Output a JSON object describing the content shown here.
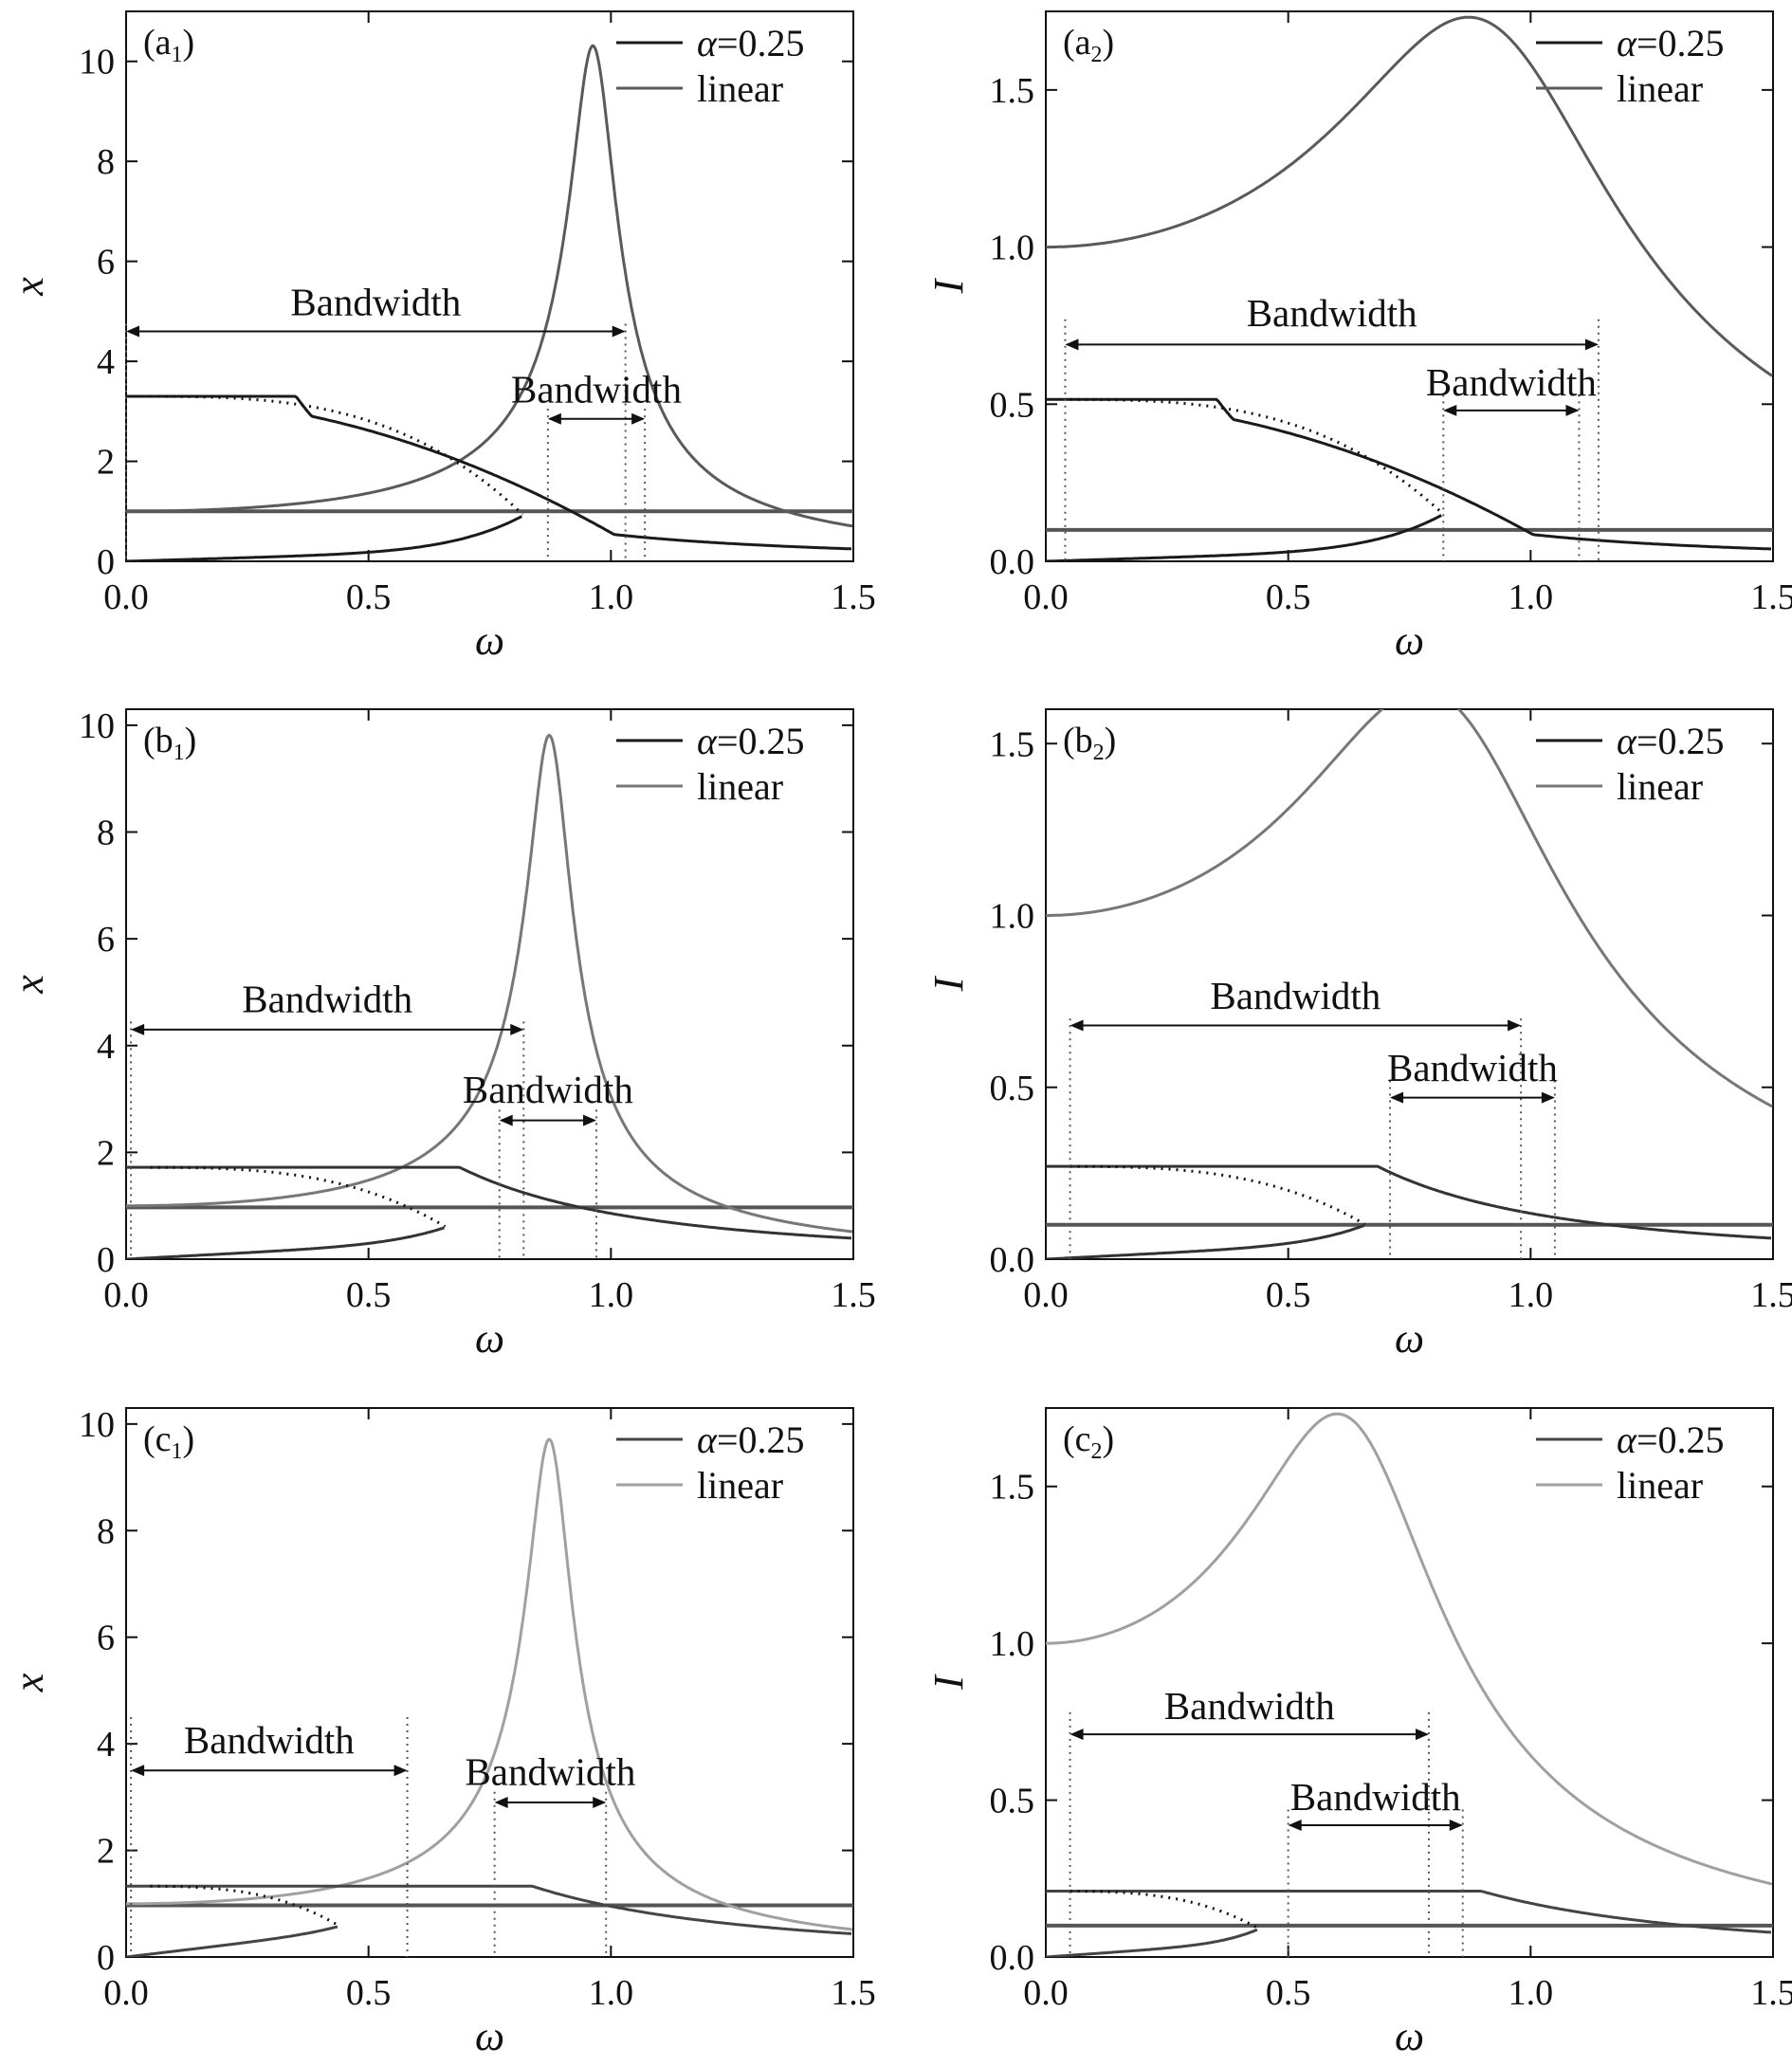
{
  "chart_data": [
    {
      "panel": "(a1)",
      "panel_letter": "(a",
      "panel_sub": "1",
      "panel_close": ")",
      "type": "line",
      "xlabel": "ω",
      "ylabel": "x",
      "xlim": [
        0,
        1.5
      ],
      "ylim": [
        0,
        11
      ],
      "xticks": [
        0,
        0.5,
        1.0,
        1.5
      ],
      "xtick_labels": [
        "0.0",
        "0.5",
        "1.0",
        "1.5"
      ],
      "yticks": [
        0,
        2,
        4,
        6,
        8,
        10
      ],
      "ytick_labels": [
        "0",
        "2",
        "4",
        "6",
        "8",
        "10"
      ],
      "legend": {
        "position": "top-right",
        "entries": [
          {
            "prefix": "α",
            "suffix": "=0.25",
            "color": "#1a1a1a"
          },
          {
            "text": "linear",
            "color": "#5a5a5a"
          }
        ]
      },
      "nonlinear": {
        "color": "#1a1a1a",
        "x0": 3.3,
        "tail_base": 0.57,
        "jump_w": 0.82,
        "jump_y": 0.92,
        "low_amp": 0.15
      },
      "linear": {
        "color": "#5a5a5a",
        "peak_w": 0.965,
        "peak": 10.3
      },
      "threshold": {
        "y": 1.0,
        "color": "#555555"
      },
      "bandwidths": [
        {
          "text": "Bandwidth",
          "x1": 0.0,
          "x2": 1.03,
          "y": 4.6,
          "label_y": 5.0,
          "lines_top": 4.75
        },
        {
          "text": "Bandwidth",
          "x1": 0.87,
          "x2": 1.07,
          "y": 2.85,
          "label_y": 3.25,
          "lines_top": 3.05
        }
      ]
    },
    {
      "panel": "(a2)",
      "panel_letter": "(a",
      "panel_sub": "2",
      "panel_close": ")",
      "type": "line",
      "xlabel": "ω",
      "ylabel": "I",
      "xlim": [
        0,
        1.5
      ],
      "ylim": [
        0,
        1.75
      ],
      "xticks": [
        0,
        0.5,
        1.0,
        1.5
      ],
      "xtick_labels": [
        "0.0",
        "0.5",
        "1.0",
        "1.5"
      ],
      "yticks": [
        0,
        0.5,
        1.0,
        1.5
      ],
      "ytick_labels": [
        "0.0",
        "0.5",
        "1.0",
        "1.5"
      ],
      "legend": {
        "position": "top-right",
        "entries": [
          {
            "prefix": "α",
            "suffix": "=0.25",
            "color": "#1a1a1a"
          },
          {
            "text": "linear",
            "color": "#5a5a5a"
          }
        ]
      },
      "nonlinear": {
        "color": "#1a1a1a",
        "x0": 0.515,
        "tail_base": 0.09,
        "jump_w": 0.82,
        "jump_y": 0.15,
        "low_amp": 0.025
      },
      "linear": {
        "color": "#5a5a5a",
        "peak_w": 0.965,
        "peak": 1.65
      },
      "threshold": {
        "y": 0.1,
        "color": "#555555"
      },
      "bandwidths": [
        {
          "text": "Bandwidth",
          "x1": 0.04,
          "x2": 1.14,
          "y": 0.69,
          "label_y": 0.76,
          "lines_top": 0.77
        },
        {
          "text": "Bandwidth",
          "x1": 0.82,
          "x2": 1.1,
          "y": 0.48,
          "label_y": 0.54,
          "lines_top": 0.53
        }
      ]
    },
    {
      "panel": "(b1)",
      "panel_letter": "(b",
      "panel_sub": "1",
      "panel_close": ")",
      "type": "line",
      "xlabel": "ω",
      "ylabel": "x",
      "xlim": [
        0,
        1.5
      ],
      "ylim": [
        0,
        10.3
      ],
      "xticks": [
        0,
        0.5,
        1.0,
        1.5
      ],
      "xtick_labels": [
        "0.0",
        "0.5",
        "1.0",
        "1.5"
      ],
      "yticks": [
        0,
        2,
        4,
        6,
        8,
        10
      ],
      "ytick_labels": [
        "0",
        "2",
        "4",
        "6",
        "8",
        "10"
      ],
      "legend": {
        "position": "top-right",
        "entries": [
          {
            "prefix": "α",
            "suffix": "=0.25",
            "color": "#1a1a1a"
          },
          {
            "text": "linear",
            "color": "#777777"
          }
        ]
      },
      "nonlinear": {
        "color": "#333333",
        "x0": 1.72,
        "tail_base": 0.9,
        "jump_w": 0.66,
        "jump_y": 0.6,
        "low_amp": 0.2
      },
      "linear": {
        "color": "#777777",
        "peak_w": 0.875,
        "peak": 9.8
      },
      "threshold": {
        "y": 0.97,
        "color": "#555555"
      },
      "bandwidths": [
        {
          "text": "Bandwidth",
          "x1": 0.01,
          "x2": 0.82,
          "y": 4.3,
          "label_y": 4.7,
          "lines_top": 4.45
        },
        {
          "text": "Bandwidth",
          "x1": 0.77,
          "x2": 0.97,
          "y": 2.6,
          "label_y": 3.0,
          "lines_top": 2.8
        }
      ]
    },
    {
      "panel": "(b2)",
      "panel_letter": "(b",
      "panel_sub": "2",
      "panel_close": ")",
      "type": "line",
      "xlabel": "ω",
      "ylabel": "I",
      "xlim": [
        0,
        1.5
      ],
      "ylim": [
        0,
        1.6
      ],
      "xticks": [
        0,
        0.5,
        1.0,
        1.5
      ],
      "xtick_labels": [
        "0.0",
        "0.5",
        "1.0",
        "1.5"
      ],
      "yticks": [
        0,
        0.5,
        1.0,
        1.5
      ],
      "ytick_labels": [
        "0.0",
        "0.5",
        "1.0",
        "1.5"
      ],
      "legend": {
        "position": "top-right",
        "entries": [
          {
            "prefix": "α",
            "suffix": "=0.25",
            "color": "#1a1a1a"
          },
          {
            "text": "linear",
            "color": "#777777"
          }
        ]
      },
      "nonlinear": {
        "color": "#333333",
        "x0": 0.27,
        "tail_base": 0.14,
        "jump_w": 0.66,
        "jump_y": 0.1,
        "low_amp": 0.03
      },
      "linear": {
        "color": "#777777",
        "peak_w": 0.87,
        "peak": 1.57
      },
      "threshold": {
        "y": 0.1,
        "color": "#555555"
      },
      "bandwidths": [
        {
          "text": "Bandwidth",
          "x1": 0.05,
          "x2": 0.98,
          "y": 0.68,
          "label_y": 0.74,
          "lines_top": 0.7
        },
        {
          "text": "Bandwidth",
          "x1": 0.71,
          "x2": 1.05,
          "y": 0.47,
          "label_y": 0.53,
          "lines_top": 0.52
        }
      ]
    },
    {
      "panel": "(c1)",
      "panel_letter": "(c",
      "panel_sub": "1",
      "panel_close": ")",
      "type": "line",
      "xlabel": "ω",
      "ylabel": "x",
      "xlim": [
        0,
        1.5
      ],
      "ylim": [
        0,
        10.3
      ],
      "xticks": [
        0,
        0.5,
        1.0,
        1.5
      ],
      "xtick_labels": [
        "0.0",
        "0.5",
        "1.0",
        "1.5"
      ],
      "yticks": [
        0,
        2,
        4,
        6,
        8,
        10
      ],
      "ytick_labels": [
        "0",
        "2",
        "4",
        "6",
        "8",
        "10"
      ],
      "legend": {
        "position": "top-right",
        "entries": [
          {
            "prefix": "α",
            "suffix": "=0.25",
            "color": "#444444"
          },
          {
            "text": "linear",
            "color": "#a0a0a0"
          }
        ]
      },
      "nonlinear": {
        "color": "#444444",
        "x0": 1.33,
        "tail_base": 1.0,
        "jump_w": 0.44,
        "jump_y": 0.58,
        "low_amp": 0.3
      },
      "linear": {
        "color": "#a0a0a0",
        "peak_w": 0.875,
        "peak": 9.7
      },
      "threshold": {
        "y": 0.97,
        "color": "#555555"
      },
      "bandwidths": [
        {
          "text": "Bandwidth",
          "x1": 0.01,
          "x2": 0.58,
          "y": 3.5,
          "label_y": 3.9,
          "lines_top": 4.5
        },
        {
          "text": "Bandwidth",
          "x1": 0.76,
          "x2": 0.99,
          "y": 2.9,
          "label_y": 3.3,
          "lines_top": 3.1
        }
      ]
    },
    {
      "panel": "(c2)",
      "panel_letter": "(c",
      "panel_sub": "2",
      "panel_close": ")",
      "type": "line",
      "xlabel": "ω",
      "ylabel": "I",
      "xlim": [
        0,
        1.5
      ],
      "ylim": [
        0,
        1.75
      ],
      "xticks": [
        0,
        0.5,
        1.0,
        1.5
      ],
      "xtick_labels": [
        "0.0",
        "0.5",
        "1.0",
        "1.5"
      ],
      "yticks": [
        0,
        0.5,
        1.0,
        1.5
      ],
      "ytick_labels": [
        "0.0",
        "0.5",
        "1.0",
        "1.5"
      ],
      "legend": {
        "position": "top-right",
        "entries": [
          {
            "prefix": "α",
            "suffix": "=0.25",
            "color": "#444444"
          },
          {
            "text": "linear",
            "color": "#a0a0a0"
          }
        ]
      },
      "nonlinear": {
        "color": "#444444",
        "x0": 0.21,
        "tail_base": 0.18,
        "jump_w": 0.44,
        "jump_y": 0.09,
        "low_amp": 0.03
      },
      "linear": {
        "color": "#a0a0a0",
        "peak_w": 0.665,
        "peak": 1.65
      },
      "threshold": {
        "y": 0.1,
        "color": "#555555"
      },
      "bandwidths": [
        {
          "text": "Bandwidth",
          "x1": 0.05,
          "x2": 0.79,
          "y": 0.71,
          "label_y": 0.77,
          "lines_top": 0.78
        },
        {
          "text": "Bandwidth",
          "x1": 0.5,
          "x2": 0.86,
          "y": 0.42,
          "label_y": 0.48,
          "lines_top": 0.47
        }
      ]
    }
  ]
}
